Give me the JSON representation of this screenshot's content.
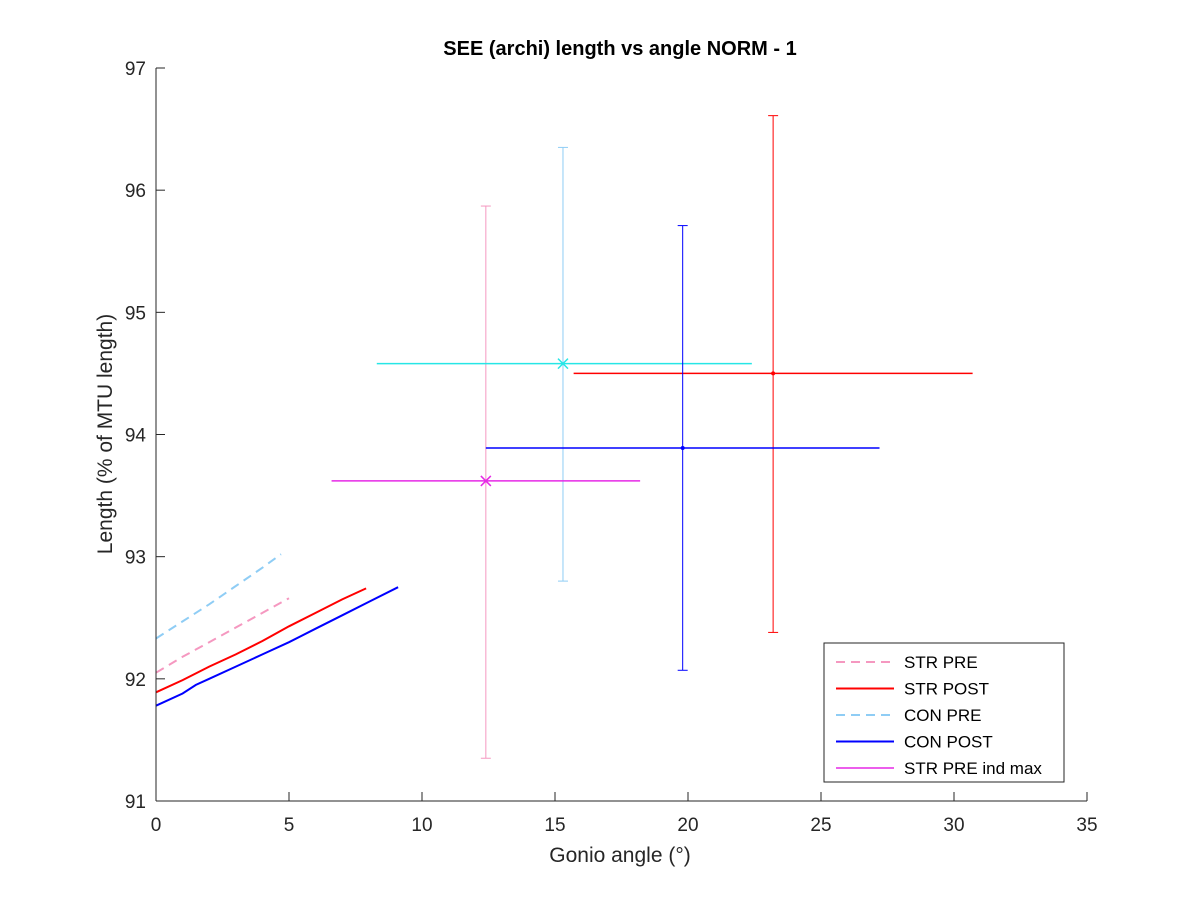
{
  "chart_data": {
    "type": "line",
    "title": "SEE (archi) length vs angle NORM - 1",
    "xlabel": "Gonio angle (°)",
    "ylabel": "Length (% of MTU length)",
    "xlim": [
      0,
      35
    ],
    "ylim": [
      91,
      97
    ],
    "xticks": [
      0,
      5,
      10,
      15,
      20,
      25,
      30,
      35
    ],
    "yticks": [
      91,
      92,
      93,
      94,
      95,
      96,
      97
    ],
    "grid": false,
    "legend_position": "bottom-right",
    "legend": [
      {
        "label": "STR PRE",
        "color": "#f598c0",
        "dash": true
      },
      {
        "label": "STR POST",
        "color": "#ff0000",
        "dash": false
      },
      {
        "label": "CON PRE",
        "color": "#8fcdf5",
        "dash": true
      },
      {
        "label": "CON POST",
        "color": "#0000ff",
        "dash": false
      },
      {
        "label": "STR PRE ind max",
        "color": "#e629e6",
        "dash": false
      }
    ],
    "series": [
      {
        "name": "STR PRE",
        "color": "#f598c0",
        "dash": true,
        "x": [
          0,
          1,
          2,
          3,
          4,
          5
        ],
        "y": [
          92.05,
          92.18,
          92.3,
          92.42,
          92.54,
          92.66
        ]
      },
      {
        "name": "STR POST",
        "color": "#ff0000",
        "dash": false,
        "x": [
          0,
          1,
          2,
          3,
          4,
          5,
          6,
          7,
          7.9
        ],
        "y": [
          91.89,
          91.99,
          92.1,
          92.2,
          92.31,
          92.43,
          92.54,
          92.65,
          92.74
        ]
      },
      {
        "name": "CON PRE",
        "color": "#8fcdf5",
        "dash": true,
        "x": [
          0,
          1,
          2,
          3,
          4,
          4.7
        ],
        "y": [
          92.33,
          92.47,
          92.61,
          92.76,
          92.91,
          93.02
        ]
      },
      {
        "name": "CON POST",
        "color": "#0000ff",
        "dash": false,
        "x": [
          0,
          1,
          1.5,
          2,
          3,
          4,
          5,
          6,
          7,
          8,
          9.1
        ],
        "y": [
          91.78,
          91.88,
          91.95,
          92.0,
          92.1,
          92.2,
          92.3,
          92.41,
          92.52,
          92.63,
          92.75
        ]
      }
    ],
    "error_points": [
      {
        "series": "STR PRE",
        "marker": "none",
        "color": "#f598c0",
        "h_color": "#f598c0",
        "x": 12.4,
        "y": 93.62,
        "xmin": 12.4,
        "xmax": 12.4,
        "ymin": 91.35,
        "ymax": 95.87,
        "has_h": false
      },
      {
        "series": "STR POST",
        "marker": "dot",
        "color": "#ff0000",
        "h_color": "#ff0000",
        "x": 23.2,
        "y": 94.5,
        "xmin": 15.7,
        "xmax": 30.7,
        "ymin": 92.38,
        "ymax": 96.61,
        "has_h": true
      },
      {
        "series": "CON PRE",
        "marker": "x",
        "color": "#8fcdf5",
        "h_color": "#26e6e6",
        "x": 15.3,
        "y": 94.58,
        "xmin": 8.3,
        "xmax": 22.4,
        "ymin": 92.8,
        "ymax": 96.35,
        "has_h": true
      },
      {
        "series": "CON POST",
        "marker": "dot",
        "color": "#0000ff",
        "h_color": "#0000ff",
        "x": 19.8,
        "y": 93.89,
        "xmin": 12.4,
        "xmax": 27.2,
        "ymin": 92.07,
        "ymax": 95.71,
        "has_h": true
      },
      {
        "series": "STR PRE ind max",
        "marker": "x",
        "color": "#e629e6",
        "h_color": "#e629e6",
        "x": 12.4,
        "y": 93.62,
        "xmin": 6.6,
        "xmax": 18.2,
        "ymin": 93.62,
        "ymax": 93.62,
        "has_h": true
      }
    ]
  }
}
